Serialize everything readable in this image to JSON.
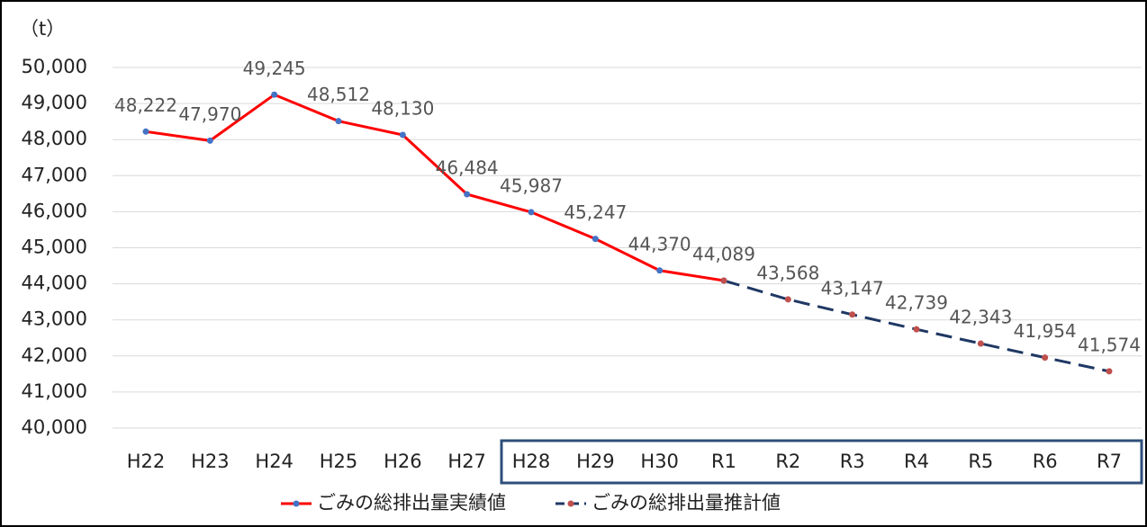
{
  "chart_data": {
    "type": "line",
    "y_axis_label": "（t）",
    "categories": [
      "H22",
      "H23",
      "H24",
      "H25",
      "H26",
      "H27",
      "H28",
      "H29",
      "H30",
      "R1",
      "R2",
      "R3",
      "R4",
      "R5",
      "R6",
      "R7"
    ],
    "series": [
      {
        "name": "ごみの総排出量実績値",
        "color": "#ff0000",
        "marker_color": "#4472c4",
        "dashed": false,
        "values": [
          48222,
          47970,
          49245,
          48512,
          48130,
          46484,
          45987,
          45247,
          44370,
          44089,
          null,
          null,
          null,
          null,
          null,
          null
        ],
        "value_labels": [
          "48,222",
          "47,970",
          "49,245",
          "48,512",
          "48,130",
          "46,484",
          "45,987",
          "45,247",
          "44,370",
          "44,089",
          null,
          null,
          null,
          null,
          null,
          null
        ]
      },
      {
        "name": "ごみの総排出量推計値",
        "color": "#1f3864",
        "marker_color": "#c0504d",
        "dashed": true,
        "values": [
          null,
          null,
          null,
          null,
          null,
          null,
          null,
          null,
          null,
          44089,
          43568,
          43147,
          42739,
          42343,
          41954,
          41574
        ],
        "value_labels": [
          null,
          null,
          null,
          null,
          null,
          null,
          null,
          null,
          null,
          null,
          "43,568",
          "43,147",
          "42,739",
          "42,343",
          "41,954",
          "41,574"
        ]
      }
    ],
    "ylim": [
      40000,
      50000
    ],
    "yticks": [
      {
        "value": 40000,
        "label": "40,000"
      },
      {
        "value": 41000,
        "label": "41,000"
      },
      {
        "value": 42000,
        "label": "42,000"
      },
      {
        "value": 43000,
        "label": "43,000"
      },
      {
        "value": 44000,
        "label": "44,000"
      },
      {
        "value": 45000,
        "label": "45,000"
      },
      {
        "value": 46000,
        "label": "46,000"
      },
      {
        "value": 47000,
        "label": "47,000"
      },
      {
        "value": 48000,
        "label": "48,000"
      },
      {
        "value": 49000,
        "label": "49,000"
      },
      {
        "value": 50000,
        "label": "50,000"
      }
    ],
    "grid": true,
    "legend": "bottom"
  }
}
